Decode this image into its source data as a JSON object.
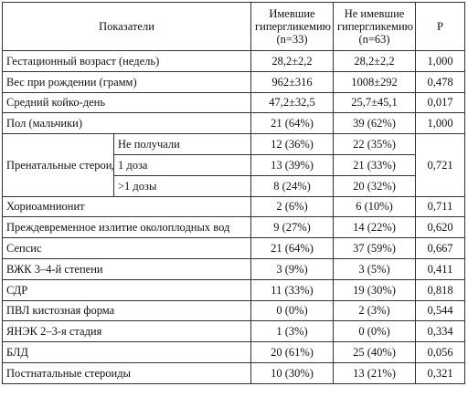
{
  "table": {
    "headers": {
      "indicator": "Показатели",
      "group1": "Имевшие гипергликемию (n=33)",
      "group2": "Не имевшие гипергликемию (n=63)",
      "p": "P"
    },
    "rows": [
      {
        "label": "Гестационный возраст (недель)",
        "g1": "28,2±2,2",
        "g2": "28,2±2,2",
        "p": "1,000"
      },
      {
        "label": "Вес при рождении (грамм)",
        "g1": "962±316",
        "g2": "1008±292",
        "p": "0,478"
      },
      {
        "label": "Средний койко-день",
        "g1": "47,2±32,5",
        "g2": "25,7±45,1",
        "p": "0,017"
      },
      {
        "label": "Пол (мальчики)",
        "g1": "21 (64%)",
        "g2": "39 (62%)",
        "p": "1,000"
      }
    ],
    "prenatal": {
      "label": "Пренатальные стероиды",
      "p": "0,721",
      "subrows": [
        {
          "label": "Не получали",
          "g1": "12 (36%)",
          "g2": "22 (35%)"
        },
        {
          "label": "1 доза",
          "g1": "13 (39%)",
          "g2": "21 (33%)"
        },
        {
          "label": ">1 дозы",
          "g1": "8 (24%)",
          "g2": "20 (32%)"
        }
      ]
    },
    "rows_after": [
      {
        "label": "Хориоамнионит",
        "g1": "2 (6%)",
        "g2": "6 (10%)",
        "p": "0,711"
      },
      {
        "label": "Преждевременное излитие околоплодных вод",
        "g1": "9 (27%)",
        "g2": "14 (22%)",
        "p": "0,620"
      },
      {
        "label": "Сепсис",
        "g1": "21 (64%)",
        "g2": "37 (59%)",
        "p": "0,667"
      },
      {
        "label": "ВЖК 3–4-й степени",
        "g1": "3 (9%)",
        "g2": "3 (5%)",
        "p": "0,411"
      },
      {
        "label": "СДР",
        "g1": "11 (33%)",
        "g2": "19 (30%)",
        "p": "0,818"
      },
      {
        "label": "ПВЛ кистозная форма",
        "g1": "0 (0%)",
        "g2": "2 (3%)",
        "p": "0,544"
      },
      {
        "label": "ЯНЭК 2–3-я стадия",
        "g1": "1 (3%)",
        "g2": "0 (0%)",
        "p": "0,334"
      },
      {
        "label": "БЛД",
        "g1": "20 (61%)",
        "g2": "25 (40%)",
        "p": "0,056"
      },
      {
        "label": "Постнатальные стероиды",
        "g1": "10 (30%)",
        "g2": "13 (21%)",
        "p": "0,321"
      }
    ]
  }
}
